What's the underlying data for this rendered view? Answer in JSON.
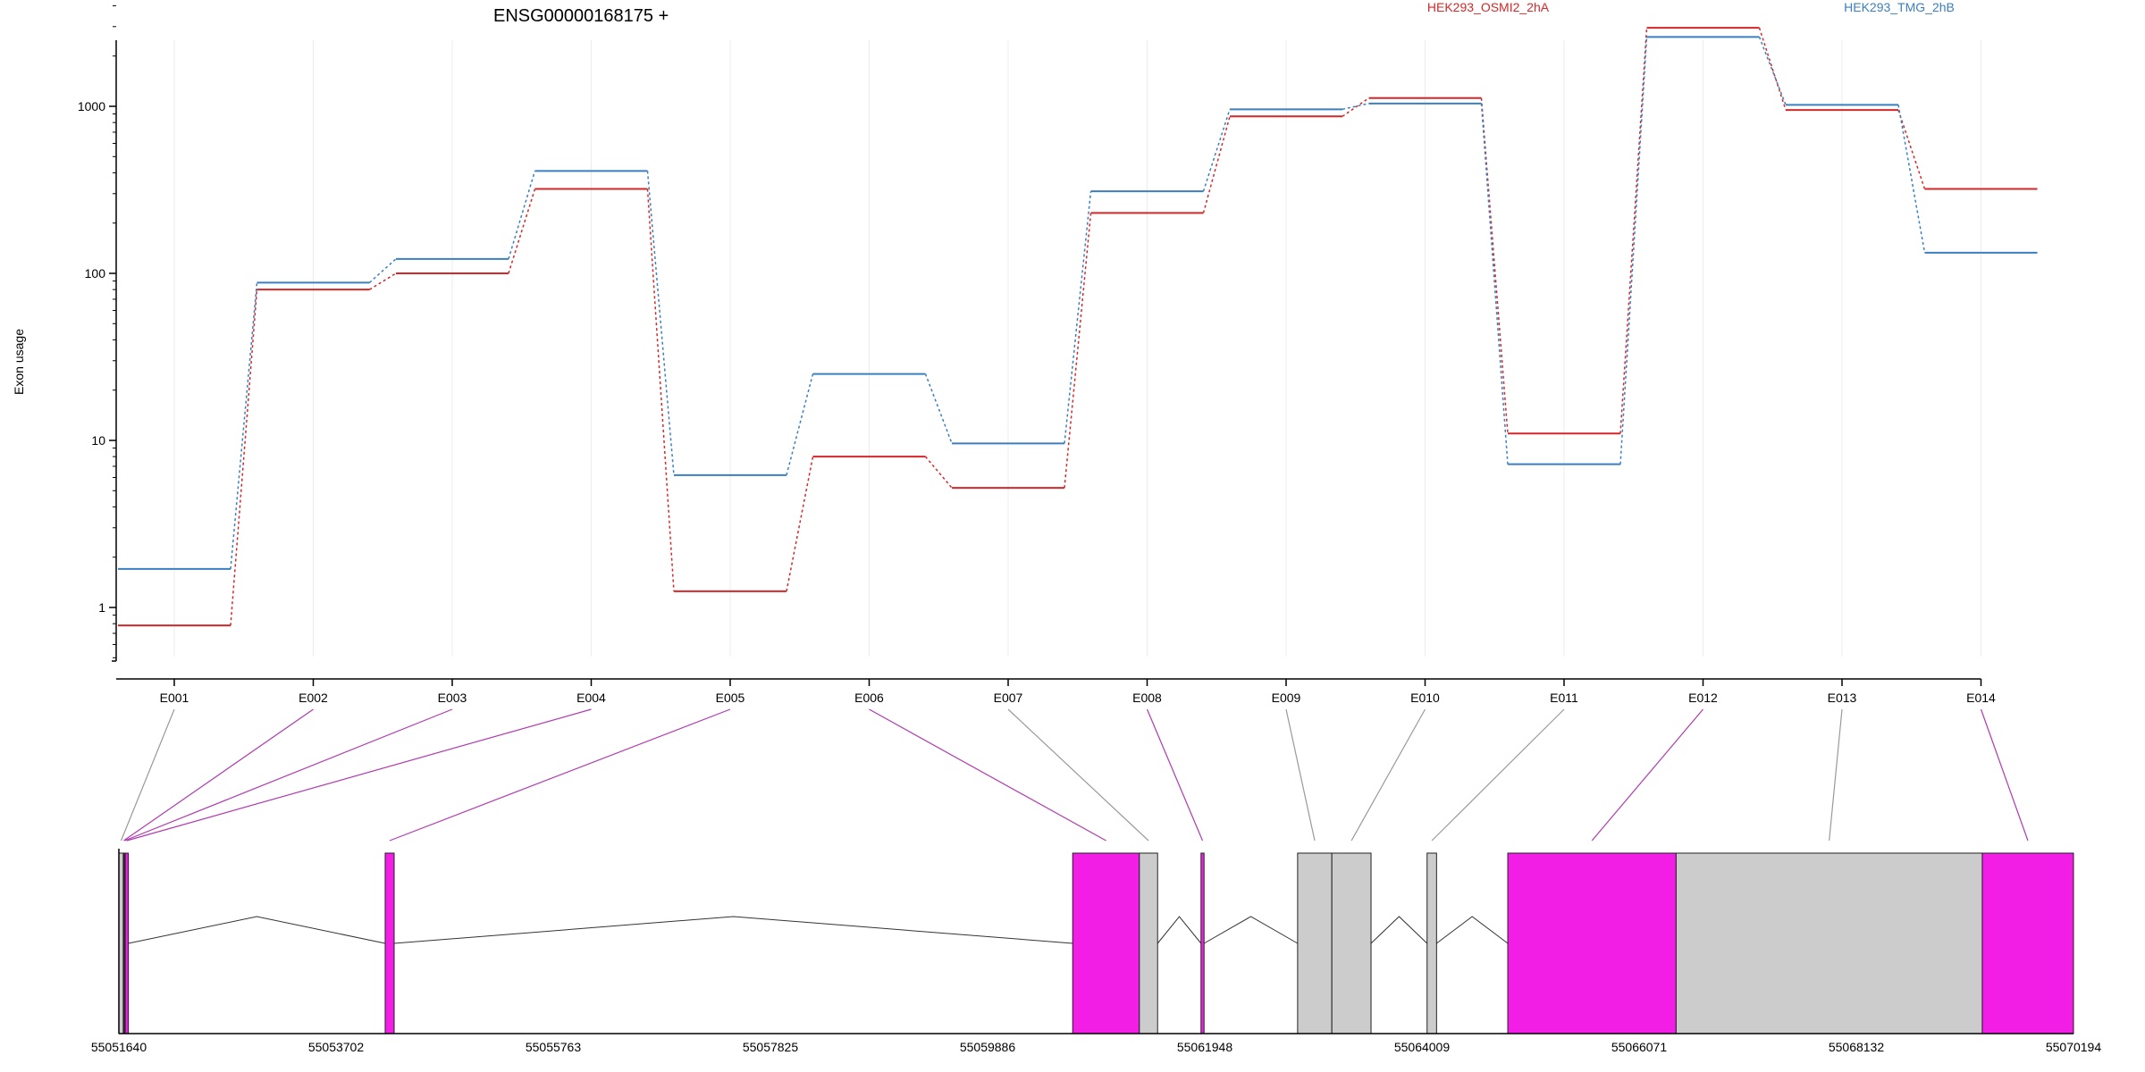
{
  "title": "ENSG00000168175 +",
  "ylabel": "Exon usage",
  "colors": {
    "HEK293_OSMI2_2hA": "#d62728",
    "HEK293_TMG_2hB": "#3a7fc1",
    "highlight_exon": "#f21ee6",
    "other_exon": "#cccccc"
  },
  "chart_data": [
    {
      "type": "line",
      "title": "ENSG00000168175 +",
      "ylabel": "Exon usage",
      "yscale": "log",
      "ylim": [
        0.45,
        4000
      ],
      "yticks": [
        1,
        10,
        100,
        1000
      ],
      "ytick_labels": [
        "1",
        "10",
        "100",
        "1000"
      ],
      "categories": [
        "E001",
        "E002",
        "E003",
        "E004",
        "E005",
        "E006",
        "E007",
        "E008",
        "E009",
        "E010",
        "E011",
        "E012",
        "E013",
        "E014"
      ],
      "legend_position": "top",
      "grid": "vertical",
      "series": [
        {
          "name": "HEK293_OSMI2_2hA",
          "color": "#d62728",
          "values": [
            0.78,
            80,
            100,
            320,
            1.25,
            8,
            5.2,
            230,
            870,
            1120,
            11,
            2950,
            950,
            320
          ]
        },
        {
          "name": "HEK293_TMG_2hB",
          "color": "#3a7fc1",
          "values": [
            1.7,
            88,
            122,
            410,
            6.2,
            25,
            9.6,
            310,
            960,
            1040,
            7.2,
            2600,
            1020,
            133
          ]
        }
      ]
    },
    {
      "type": "gene_model",
      "genomic_range": [
        55051640,
        55070194
      ],
      "xtick_labels": [
        "55051640",
        "55053702",
        "55055763",
        "55057825",
        "55059886",
        "55061948",
        "55064009",
        "55066071",
        "55068132",
        "55070194"
      ],
      "exons": [
        {
          "id": "E001",
          "start": 55051640,
          "end": 55051682,
          "highlight": false
        },
        {
          "id": "E002",
          "start": 55051682,
          "end": 55051691,
          "highlight": true
        },
        {
          "id": "E003",
          "start": 55051691,
          "end": 55051700,
          "highlight": true
        },
        {
          "id": "E004",
          "start": 55051700,
          "end": 55051730,
          "highlight": true
        },
        {
          "id": "E005",
          "start": 55054168,
          "end": 55054253,
          "highlight": true
        },
        {
          "id": "E006",
          "start": 55060694,
          "end": 55061327,
          "highlight": true
        },
        {
          "id": "E007",
          "start": 55061327,
          "end": 55061500,
          "highlight": false
        },
        {
          "id": "E008",
          "start": 55061912,
          "end": 55061941,
          "highlight": true
        },
        {
          "id": "E009",
          "start": 55062829,
          "end": 55063154,
          "highlight": false
        },
        {
          "id": "E010",
          "start": 55063154,
          "end": 55063526,
          "highlight": false
        },
        {
          "id": "E011",
          "start": 55064058,
          "end": 55064148,
          "highlight": false
        },
        {
          "id": "E012",
          "start": 55064824,
          "end": 55066422,
          "highlight": true
        },
        {
          "id": "E013",
          "start": 55066422,
          "end": 55069328,
          "highlight": false
        },
        {
          "id": "E014",
          "start": 55069328,
          "end": 55070194,
          "highlight": true
        }
      ],
      "introns": [
        [
          55051730,
          55054168
        ],
        [
          55054253,
          55060694
        ],
        [
          55061500,
          55061912
        ],
        [
          55061941,
          55062829
        ],
        [
          55063526,
          55064058
        ],
        [
          55064148,
          55064824
        ]
      ]
    }
  ]
}
